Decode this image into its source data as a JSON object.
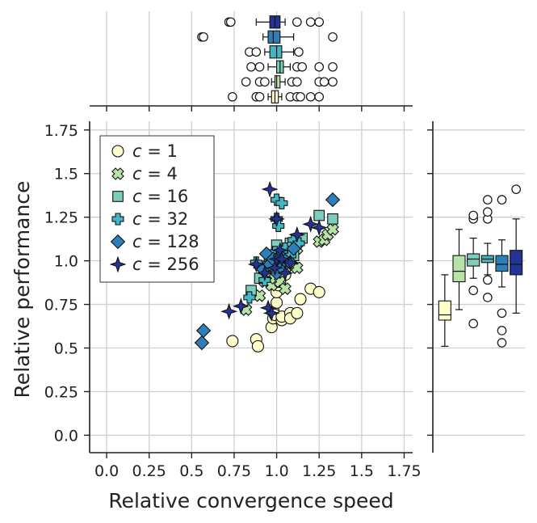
{
  "chart_data": {
    "type": "scatter",
    "title": "",
    "xlabel": "Relative convergence speed",
    "ylabel": "Relative performance",
    "xlim": [
      -0.1,
      1.8
    ],
    "ylim": [
      -0.1,
      1.8
    ],
    "xticks": [
      "0.0",
      "0.25",
      "0.5",
      "0.75",
      "1.0",
      "1.25",
      "1.5",
      "1.75"
    ],
    "yticks": [
      "0.0",
      "0.25",
      "0.5",
      "0.75",
      "1.0",
      "1.25",
      "1.5",
      "1.75"
    ],
    "xtick_values": [
      0,
      0.25,
      0.5,
      0.75,
      1.0,
      1.25,
      1.5,
      1.75
    ],
    "ytick_values": [
      0,
      0.25,
      0.5,
      0.75,
      1.0,
      1.25,
      1.5,
      1.75
    ],
    "grid": true,
    "legend_position": "top-left",
    "marginals": "boxplots of each series along top (x) and right (y)",
    "series": [
      {
        "name": "c = 1",
        "legend_c": "1",
        "marker": "circle",
        "color": "#ffffcc",
        "points": [
          [
            0.74,
            0.54
          ],
          [
            0.88,
            0.55
          ],
          [
            0.89,
            0.51
          ],
          [
            0.97,
            0.62
          ],
          [
            0.98,
            0.67
          ],
          [
            0.98,
            0.72
          ],
          [
            0.99,
            0.69
          ],
          [
            1.0,
            0.76
          ],
          [
            1.0,
            0.82
          ],
          [
            1.01,
            0.86
          ],
          [
            1.02,
            0.88
          ],
          [
            1.03,
            0.66
          ],
          [
            1.03,
            0.68
          ],
          [
            1.05,
            0.92
          ],
          [
            1.08,
            0.7
          ],
          [
            1.08,
            0.67
          ],
          [
            1.12,
            0.7
          ],
          [
            1.14,
            0.78
          ],
          [
            1.2,
            0.84
          ],
          [
            1.25,
            0.82
          ]
        ]
      },
      {
        "name": "c = 4",
        "legend_c": "4",
        "marker": "x",
        "color": "#b7e3a7",
        "points": [
          [
            0.82,
            0.72
          ],
          [
            0.9,
            0.8
          ],
          [
            0.93,
            0.88
          ],
          [
            0.95,
            0.93
          ],
          [
            0.97,
            0.86
          ],
          [
            0.99,
            0.9
          ],
          [
            1.0,
            0.95
          ],
          [
            1.02,
            0.88
          ],
          [
            1.05,
            0.84
          ],
          [
            1.06,
            0.98
          ],
          [
            1.09,
            0.97
          ],
          [
            1.12,
            0.96
          ],
          [
            1.12,
            1.07
          ],
          [
            1.25,
            1.11
          ],
          [
            1.28,
            1.12
          ],
          [
            1.3,
            1.15
          ],
          [
            1.33,
            1.18
          ]
        ]
      },
      {
        "name": "c = 16",
        "legend_c": "16",
        "marker": "square",
        "color": "#7ccdbb",
        "points": [
          [
            0.85,
            0.83
          ],
          [
            0.9,
            0.9
          ],
          [
            0.95,
            0.97
          ],
          [
            0.98,
            1.0
          ],
          [
            1.0,
            1.04
          ],
          [
            1.0,
            1.09
          ],
          [
            1.02,
            0.97
          ],
          [
            1.04,
            1.01
          ],
          [
            1.06,
            1.05
          ],
          [
            1.08,
            1.1
          ],
          [
            1.1,
            1.03
          ],
          [
            1.15,
            1.13
          ],
          [
            1.25,
            1.26
          ],
          [
            1.33,
            1.24
          ]
        ]
      },
      {
        "name": "c = 32",
        "legend_c": "32",
        "marker": "plus",
        "color": "#41b6c4",
        "points": [
          [
            0.84,
            0.79
          ],
          [
            0.88,
            0.99
          ],
          [
            0.93,
            0.89
          ],
          [
            0.96,
            1.01
          ],
          [
            0.99,
            1.05
          ],
          [
            1.0,
            1.24
          ],
          [
            1.0,
            1.35
          ],
          [
            1.01,
            1.2
          ],
          [
            1.03,
            1.02
          ],
          [
            1.03,
            1.33
          ],
          [
            1.05,
            1.07
          ],
          [
            1.08,
            1.03
          ],
          [
            1.1,
            1.12
          ],
          [
            1.13,
            1.1
          ]
        ]
      },
      {
        "name": "c = 128",
        "legend_c": "128",
        "marker": "diamond",
        "color": "#2c7fb8",
        "points": [
          [
            0.56,
            0.53
          ],
          [
            0.57,
            0.6
          ],
          [
            0.92,
            0.95
          ],
          [
            0.94,
            1.04
          ],
          [
            0.96,
            0.98
          ],
          [
            0.98,
            1.01
          ],
          [
            1.0,
            0.93
          ],
          [
            1.02,
            1.03
          ],
          [
            1.03,
            0.96
          ],
          [
            1.05,
            1.0
          ],
          [
            1.08,
            0.99
          ],
          [
            1.1,
            1.07
          ],
          [
            1.33,
            1.35
          ]
        ]
      },
      {
        "name": "c = 256",
        "legend_c": "256",
        "marker": "star",
        "color": "#253494",
        "points": [
          [
            0.72,
            0.71
          ],
          [
            0.79,
            0.74
          ],
          [
            0.88,
            0.98
          ],
          [
            0.93,
            0.93
          ],
          [
            0.95,
            0.73
          ],
          [
            0.96,
            1.41
          ],
          [
            0.97,
            0.7
          ],
          [
            0.99,
            0.96
          ],
          [
            1.0,
            1.01
          ],
          [
            1.0,
            1.24
          ],
          [
            1.02,
            1.06
          ],
          [
            1.03,
            1.01
          ],
          [
            1.05,
            0.93
          ],
          [
            1.08,
            0.99
          ],
          [
            1.12,
            1.15
          ],
          [
            1.2,
            1.21
          ],
          [
            1.25,
            1.19
          ]
        ]
      }
    ],
    "x_boxplots": [
      {
        "name": "c = 1",
        "q1": 0.97,
        "median": 0.99,
        "q3": 1.01,
        "whislo": 0.95,
        "whishi": 1.03,
        "fliers": [
          0.74,
          0.88,
          0.9,
          1.08,
          1.12,
          1.14,
          1.2,
          1.25
        ]
      },
      {
        "name": "c = 4",
        "q1": 0.99,
        "median": 1.0,
        "q3": 1.02,
        "whislo": 0.97,
        "whishi": 1.05,
        "fliers": [
          0.82,
          0.9,
          0.93,
          1.09,
          1.12,
          1.25,
          1.28,
          1.33
        ]
      },
      {
        "name": "c = 16",
        "q1": 1.0,
        "median": 1.02,
        "q3": 1.04,
        "whislo": 0.95,
        "whishi": 1.08,
        "fliers": [
          0.85,
          0.9,
          1.12,
          1.15,
          1.25,
          1.33
        ]
      },
      {
        "name": "c = 32",
        "q1": 0.96,
        "median": 1.0,
        "q3": 1.03,
        "whislo": 0.93,
        "whishi": 1.1,
        "fliers": [
          0.84,
          0.88,
          1.13
        ]
      },
      {
        "name": "c = 128",
        "q1": 0.95,
        "median": 0.98,
        "q3": 1.02,
        "whislo": 0.92,
        "whishi": 1.1,
        "fliers": [
          0.56,
          0.57,
          1.33
        ]
      },
      {
        "name": "c = 256",
        "q1": 0.96,
        "median": 0.99,
        "q3": 1.02,
        "whislo": 0.88,
        "whishi": 1.05,
        "fliers": [
          0.72,
          0.73,
          1.12,
          1.2,
          1.25
        ]
      }
    ],
    "y_boxplots": [
      {
        "name": "c = 1",
        "q1": 0.66,
        "median": 0.69,
        "q3": 0.77,
        "whislo": 0.51,
        "whishi": 0.92,
        "fliers": []
      },
      {
        "name": "c = 4",
        "q1": 0.88,
        "median": 0.94,
        "q3": 1.03,
        "whislo": 0.72,
        "whishi": 1.18,
        "fliers": []
      },
      {
        "name": "c = 16",
        "q1": 0.97,
        "median": 1.01,
        "q3": 1.04,
        "whislo": 0.9,
        "whishi": 1.13,
        "fliers": [
          1.24,
          1.26,
          0.83,
          0.64
        ]
      },
      {
        "name": "c = 32",
        "q1": 0.99,
        "median": 1.01,
        "q3": 1.03,
        "whislo": 0.92,
        "whishi": 1.1,
        "fliers": [
          1.24,
          1.28,
          1.35,
          0.79,
          0.89
        ]
      },
      {
        "name": "c = 128",
        "q1": 0.94,
        "median": 0.98,
        "q3": 1.03,
        "whislo": 0.85,
        "whishi": 1.12,
        "fliers": [
          1.35,
          0.53,
          0.6,
          0.7
        ]
      },
      {
        "name": "c = 256",
        "q1": 0.92,
        "median": 0.98,
        "q3": 1.06,
        "whislo": 0.7,
        "whishi": 1.24,
        "fliers": [
          1.41
        ]
      }
    ]
  }
}
